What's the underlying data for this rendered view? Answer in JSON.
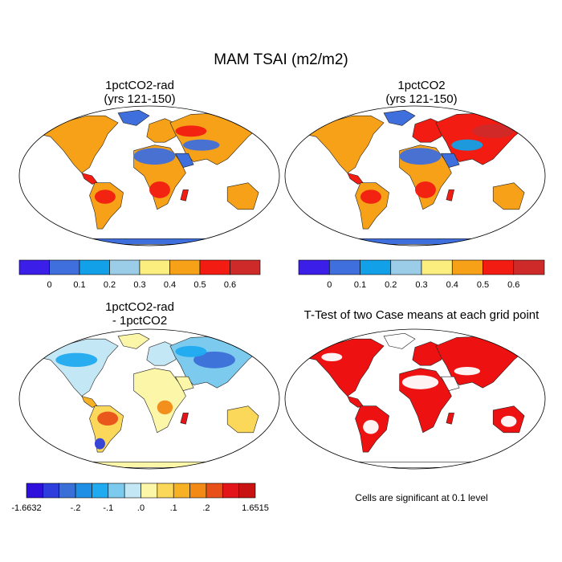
{
  "title": "MAM TSAI (m2/m2)",
  "chart_data": [
    {
      "type": "heatmap",
      "title_line1": "1pctCO2-rad",
      "title_line2": "(yrs 121-150)",
      "colorbar": {
        "colors": [
          "#3b1ee8",
          "#3f6fdc",
          "#12a0e8",
          "#9ccde8",
          "#fbee7e",
          "#f6a117",
          "#f21c12",
          "#cf2a2a"
        ],
        "tick_labels": [
          "0",
          "0.1",
          "0.2",
          "0.3",
          "0.4",
          "0.5",
          "0.6"
        ]
      }
    },
    {
      "type": "heatmap",
      "title_line1": "1pctCO2",
      "title_line2": "(yrs 121-150)",
      "colorbar": {
        "colors": [
          "#3b1ee8",
          "#3f6fdc",
          "#12a0e8",
          "#9ccde8",
          "#fbee7e",
          "#f6a117",
          "#f21c12",
          "#cf2a2a"
        ],
        "tick_labels": [
          "0",
          "0.1",
          "0.2",
          "0.3",
          "0.4",
          "0.5",
          "0.6"
        ]
      }
    },
    {
      "type": "heatmap",
      "title_line1": "1pctCO2-rad",
      "title_line2": "- 1pctCO2",
      "colorbar": {
        "colors": [
          "#2e0fdc",
          "#2d3edc",
          "#3b6fd8",
          "#1f8fe6",
          "#20aaf0",
          "#7ccaee",
          "#c3e7f5",
          "#fbf6a8",
          "#fbd75a",
          "#f6b125",
          "#f28a15",
          "#e8501a",
          "#e2151a",
          "#c91212"
        ],
        "tick_labels": [
          "-1.6632",
          "-.2",
          "-.1",
          ".0",
          ".1",
          ".2",
          "1.6515"
        ]
      }
    },
    {
      "type": "heatmap",
      "title": "T-Test of two Case means at each grid point",
      "significance_color": "#ee1111",
      "note": "Cells are significant at 0.1 level"
    }
  ]
}
